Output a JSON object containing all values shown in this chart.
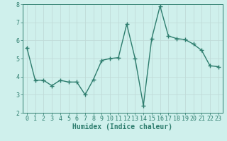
{
  "x": [
    0,
    1,
    2,
    3,
    4,
    5,
    6,
    7,
    8,
    9,
    10,
    11,
    12,
    13,
    14,
    15,
    16,
    17,
    18,
    19,
    20,
    21,
    22,
    23
  ],
  "y": [
    5.6,
    3.8,
    3.8,
    3.5,
    3.8,
    3.7,
    3.7,
    3.0,
    3.85,
    4.9,
    5.0,
    5.05,
    6.9,
    5.0,
    2.4,
    6.1,
    7.9,
    6.25,
    6.1,
    6.05,
    5.8,
    5.45,
    4.6,
    4.55
  ],
  "line_color": "#2e7d6e",
  "marker": "+",
  "marker_size": 4,
  "background_color": "#cff0ec",
  "grid_color": "#c0dbd8",
  "xlabel": "Humidex (Indice chaleur)",
  "xlabel_fontsize": 7,
  "ylim": [
    2,
    8
  ],
  "xlim": [
    -0.5,
    23.5
  ],
  "yticks": [
    2,
    3,
    4,
    5,
    6,
    7,
    8
  ],
  "xticks": [
    0,
    1,
    2,
    3,
    4,
    5,
    6,
    7,
    8,
    9,
    10,
    11,
    12,
    13,
    14,
    15,
    16,
    17,
    18,
    19,
    20,
    21,
    22,
    23
  ],
  "tick_fontsize": 6,
  "linewidth": 1.0
}
